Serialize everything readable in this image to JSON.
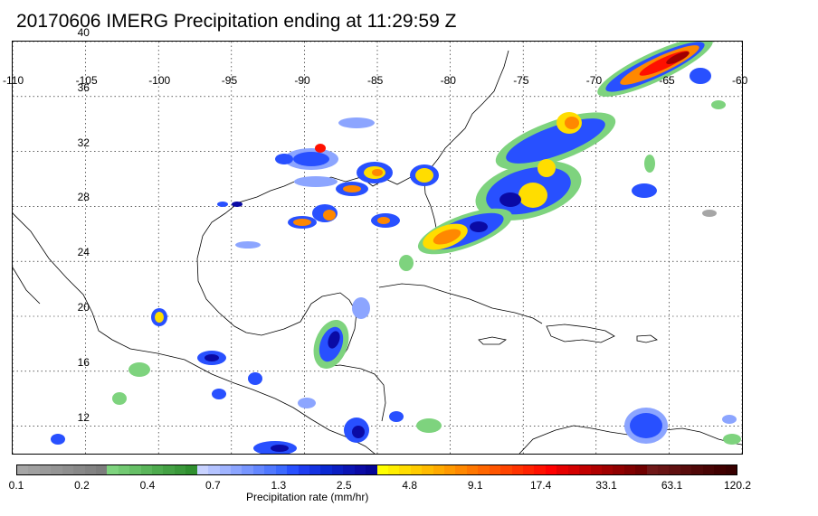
{
  "title": "20170606 IMERG Precipitation ending at 11:29:59 Z",
  "lon_labels": [
    "-110",
    "-105",
    "-100",
    "-95",
    "-90",
    "-85",
    "-80",
    "-75",
    "-70",
    "-65",
    "-60"
  ],
  "lat_labels": [
    "40",
    "36",
    "32",
    "28",
    "24",
    "20",
    "16",
    "12"
  ],
  "colorbar": {
    "title": "Precipitation rate (mm/hr)",
    "labels": [
      "0.1",
      "0.2",
      "0.4",
      "0.7",
      "1.3",
      "2.5",
      "4.8",
      "9.1",
      "17.4",
      "33.1",
      "63.1",
      "120.2"
    ],
    "colors": [
      "#a6a6a6",
      "#a0a0a0",
      "#9a9a9a",
      "#949494",
      "#8e8e8e",
      "#888888",
      "#828282",
      "#7c7c7c",
      "#7ed37e",
      "#72c972",
      "#66bf66",
      "#5ab55a",
      "#4eab4e",
      "#44a144",
      "#3a983a",
      "#2f8f2f",
      "#c8d2ff",
      "#b4c3ff",
      "#a0b4ff",
      "#8ca5ff",
      "#7896ff",
      "#6487ff",
      "#5078ff",
      "#3c69ff",
      "#2850ff",
      "#1e3cf0",
      "#1432e1",
      "#0a28d2",
      "#0a1ec3",
      "#0a14b4",
      "#0a0aa5",
      "#050596",
      "#ffff00",
      "#ffee00",
      "#ffdd00",
      "#ffcc00",
      "#ffbb00",
      "#ffaa00",
      "#ff9900",
      "#ff8800",
      "#ff7700",
      "#ff6600",
      "#ff5500",
      "#ff4400",
      "#ff3300",
      "#ff2200",
      "#ff1100",
      "#ff0000",
      "#e60000",
      "#d40000",
      "#c20000",
      "#b00000",
      "#a00000",
      "#900000",
      "#800000",
      "#700000",
      "#701818",
      "#681414",
      "#601010",
      "#580c0c",
      "#500808",
      "#480404",
      "#400000",
      "#380000"
    ]
  },
  "map": {
    "lon_range": [
      -110,
      -60
    ],
    "lat_range": [
      10,
      40
    ],
    "graticule_step_lon": 5,
    "graticule_step_lat": 4,
    "precip_colors": {
      "light": "#7ed37e",
      "gray": "#a6a6a6",
      "blue_light": "#8ca5ff",
      "blue": "#2850ff",
      "blue_dark": "#0a0aa5",
      "yellow": "#ffdd00",
      "orange": "#ff8800",
      "red": "#ff1100",
      "dark_red": "#a00000"
    }
  }
}
